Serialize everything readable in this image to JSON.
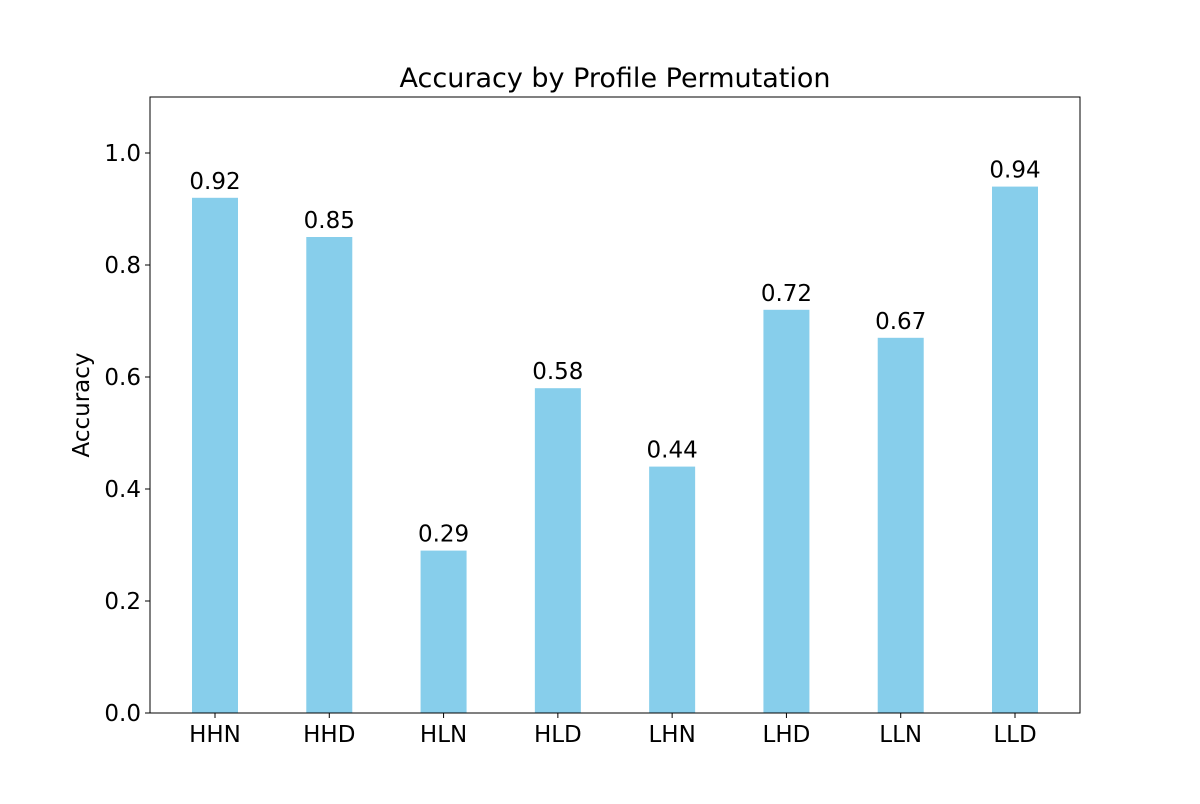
{
  "chart_data": {
    "type": "bar",
    "title": "Accuracy by Profile Permutation",
    "xlabel": "",
    "ylabel": "Accuracy",
    "categories": [
      "HHN",
      "HHD",
      "HLN",
      "HLD",
      "LHN",
      "LHD",
      "LLN",
      "LLD"
    ],
    "values": [
      0.92,
      0.85,
      0.29,
      0.58,
      0.44,
      0.72,
      0.67,
      0.94
    ],
    "value_labels": [
      "0.92",
      "0.85",
      "0.29",
      "0.58",
      "0.44",
      "0.72",
      "0.67",
      "0.94"
    ],
    "ylim": [
      0,
      1.1
    ],
    "yticks": [
      0.0,
      0.2,
      0.4,
      0.6,
      0.8,
      1.0
    ],
    "ytick_labels": [
      "0.0",
      "0.2",
      "0.4",
      "0.6",
      "0.8",
      "1.0"
    ],
    "grid": false,
    "legend": false,
    "bar_color": "#87ceeb"
  }
}
